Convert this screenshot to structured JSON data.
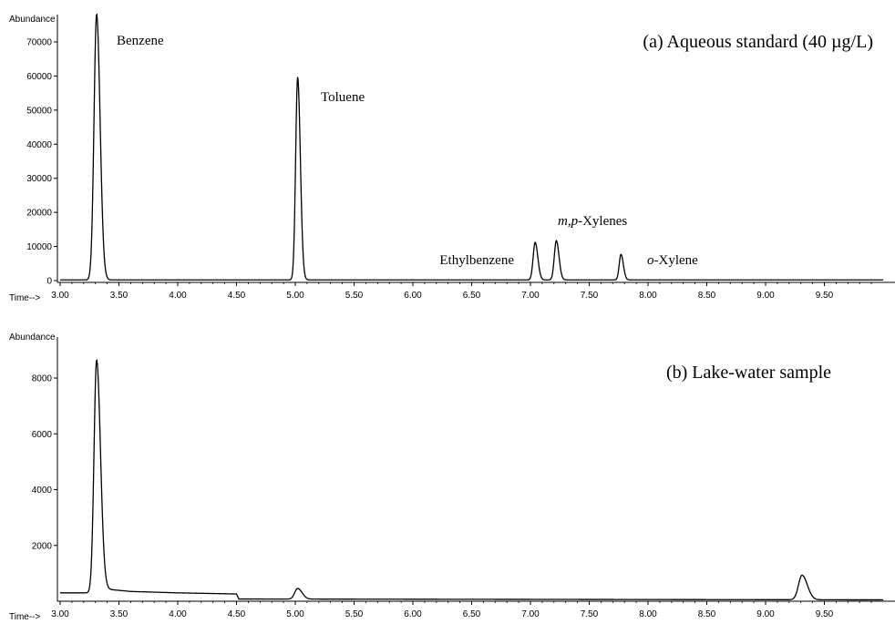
{
  "chart_data": [
    {
      "type": "line",
      "title": "(a) Aqueous standard (40 µg/L)",
      "ylabel": "Abundance",
      "xlabel": "Time-->",
      "x_ticks": [
        "3.00",
        "3.50",
        "4.00",
        "4.50",
        "5.00",
        "5.50",
        "6.00",
        "6.50",
        "7.00",
        "7.50",
        "8.00",
        "8.50",
        "9.00",
        "9.50"
      ],
      "y_ticks": [
        "0",
        "10000",
        "20000",
        "30000",
        "40000",
        "50000",
        "60000",
        "70000"
      ],
      "xlim": [
        3.0,
        10.0
      ],
      "ylim": [
        0,
        78000
      ],
      "grid": false,
      "peaks": [
        {
          "x": 3.31,
          "y": 78000,
          "width": 0.022,
          "label_main": "Benzene",
          "label_ital": ""
        },
        {
          "x": 5.02,
          "y": 59500,
          "width": 0.017,
          "label_main": "Toluene",
          "label_ital": ""
        },
        {
          "x": 7.04,
          "y": 11000,
          "width": 0.017,
          "label_main": "Ethylbenzene",
          "label_ital": ""
        },
        {
          "x": 7.22,
          "y": 11500,
          "width": 0.017,
          "label_main": "-Xylenes",
          "label_ital": "m,p"
        },
        {
          "x": 7.77,
          "y": 7500,
          "width": 0.015,
          "label_main": "-Xylene",
          "label_ital": "o"
        }
      ],
      "baseline": 200
    },
    {
      "type": "line",
      "title": "(b) Lake-water sample",
      "ylabel": "Abundance",
      "xlabel": "Time-->",
      "x_ticks": [
        "3.00",
        "3.50",
        "4.00",
        "4.50",
        "5.00",
        "5.50",
        "6.00",
        "6.50",
        "7.00",
        "7.50",
        "8.00",
        "8.50",
        "9.00",
        "9.50"
      ],
      "y_ticks": [
        "2000",
        "4000",
        "6000",
        "8000"
      ],
      "xlim": [
        3.0,
        10.0
      ],
      "ylim": [
        0,
        9100
      ],
      "grid": false,
      "peaks": [
        {
          "x": 3.31,
          "y": 8300,
          "width": 0.022
        },
        {
          "x": 5.02,
          "y": 380,
          "width": 0.025
        },
        {
          "x": 9.31,
          "y": 880,
          "width": 0.03
        }
      ],
      "baseline_points": [
        [
          3.0,
          300
        ],
        [
          3.25,
          300
        ],
        [
          3.4,
          430
        ],
        [
          3.6,
          350
        ],
        [
          4.0,
          300
        ],
        [
          4.5,
          260
        ],
        [
          4.52,
          80
        ],
        [
          10.0,
          50
        ]
      ]
    }
  ]
}
